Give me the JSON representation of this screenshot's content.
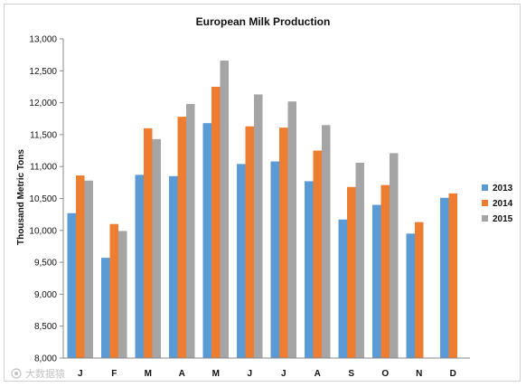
{
  "chart_data": {
    "type": "bar",
    "title": "European Milk Production",
    "xlabel": "",
    "ylabel": "Thousand Metric Tons",
    "categories": [
      "J",
      "F",
      "M",
      "A",
      "M",
      "J",
      "J",
      "A",
      "S",
      "O",
      "N",
      "D"
    ],
    "ylim": [
      8000,
      13000
    ],
    "yticks": [
      "8,000",
      "8,500",
      "9,000",
      "9,500",
      "10,000",
      "10,500",
      "11,000",
      "11,500",
      "12,000",
      "12,500",
      "13,000"
    ],
    "grid": false,
    "legend_position": "right",
    "series": [
      {
        "name": "2013",
        "color": "#5b9bd5",
        "values": [
          10270,
          9570,
          10870,
          10850,
          11680,
          11040,
          11080,
          10770,
          10170,
          10400,
          9950,
          10510
        ]
      },
      {
        "name": "2014",
        "color": "#ed7d31",
        "values": [
          10860,
          10100,
          11600,
          11780,
          12250,
          11630,
          11610,
          11250,
          10680,
          10710,
          10130,
          10580
        ]
      },
      {
        "name": "2015",
        "color": "#a5a5a5",
        "values": [
          10780,
          9990,
          11430,
          11980,
          12660,
          12130,
          12020,
          11650,
          11060,
          11210,
          null,
          null
        ]
      }
    ]
  },
  "watermark": {
    "text": "大数据猿"
  }
}
